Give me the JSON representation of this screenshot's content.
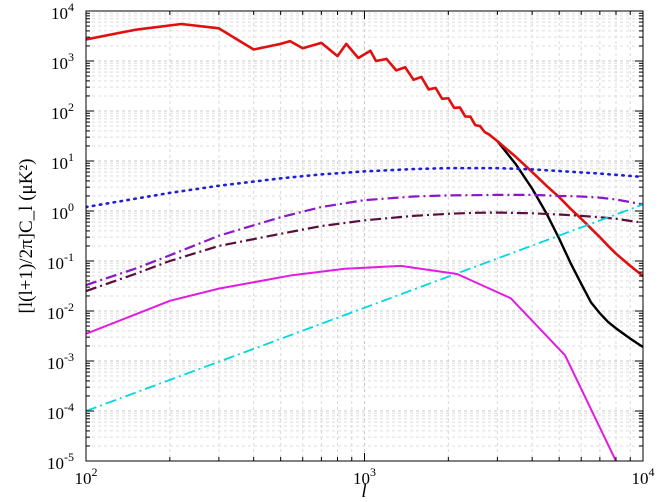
{
  "chart_data": {
    "type": "line",
    "xscale": "log",
    "yscale": "log",
    "xlim": [
      100,
      10000
    ],
    "ylim": [
      1e-05,
      10000
    ],
    "grid": true,
    "xlabel": "l",
    "ylabel": "[l(l+1)/2π]C_l (μK²)",
    "x_ticks": [
      {
        "value": 100,
        "base": "10",
        "exp": "2"
      },
      {
        "value": 1000,
        "base": "10",
        "exp": "3"
      },
      {
        "value": 10000,
        "base": "10",
        "exp": "4"
      }
    ],
    "y_ticks": [
      {
        "value": 1e-05,
        "base": "10",
        "exp": "-5"
      },
      {
        "value": 0.0001,
        "base": "10",
        "exp": "-4"
      },
      {
        "value": 0.001,
        "base": "10",
        "exp": "-3"
      },
      {
        "value": 0.01,
        "base": "10",
        "exp": "-2"
      },
      {
        "value": 0.1,
        "base": "10",
        "exp": "-1"
      },
      {
        "value": 1,
        "base": "10",
        "exp": "0"
      },
      {
        "value": 10,
        "base": "10",
        "exp": "1"
      },
      {
        "value": 100,
        "base": "10",
        "exp": "2"
      },
      {
        "value": 1000,
        "base": "10",
        "exp": "3"
      },
      {
        "value": 10000,
        "base": "10",
        "exp": "4"
      }
    ],
    "series": [
      {
        "color": "#000000",
        "style": "solid",
        "width": 2.4,
        "x": [
          3000,
          3500,
          4000,
          4500,
          5000,
          5500,
          6000,
          6500,
          7000,
          7500,
          8000,
          9000,
          10000
        ],
        "y": [
          25,
          8.5,
          2.8,
          0.9,
          0.28,
          0.09,
          0.035,
          0.015,
          0.009,
          0.006,
          0.0045,
          0.0028,
          0.0019
        ]
      },
      {
        "color": "#e01010",
        "style": "solid",
        "width": 2.6,
        "x": [
          100,
          150,
          220,
          300,
          400,
          500,
          540,
          600,
          700,
          800,
          860,
          950,
          1050,
          1100,
          1200,
          1300,
          1400,
          1500,
          1600,
          1700,
          1800,
          1900,
          2000,
          2100,
          2200,
          2300,
          2400,
          2500,
          2600,
          2700,
          2800,
          2900,
          3000,
          3500,
          4000,
          4500,
          5000,
          5500,
          6000,
          6500,
          7000,
          7500,
          8000,
          9000,
          10000
        ],
        "y": [
          2700,
          4200,
          5500,
          4500,
          1700,
          2200,
          2500,
          1800,
          2300,
          1250,
          2200,
          1150,
          1600,
          1000,
          1100,
          650,
          750,
          420,
          480,
          270,
          290,
          175,
          180,
          115,
          118,
          78,
          77,
          52,
          50,
          38,
          34,
          29,
          25,
          12,
          6,
          3.2,
          1.9,
          1.1,
          0.7,
          0.45,
          0.3,
          0.2,
          0.14,
          0.08,
          0.05
        ]
      },
      {
        "color": "#1f1fd6",
        "style": "dotted",
        "width": 2.6,
        "x": [
          100,
          200,
          300,
          500,
          700,
          1000,
          1500,
          2000,
          3000,
          4000,
          5000,
          7000,
          10000
        ],
        "y": [
          1.2,
          2.3,
          3.2,
          4.5,
          5.4,
          6.2,
          6.9,
          7.2,
          7.2,
          6.8,
          6.3,
          5.6,
          4.8
        ]
      },
      {
        "color": "#8a18c8",
        "style": "dashdot",
        "width": 2.2,
        "x": [
          100,
          150,
          200,
          300,
          500,
          700,
          1000,
          1500,
          2000,
          3000,
          4000,
          5000,
          6000,
          7000,
          8000,
          10000
        ],
        "y": [
          0.033,
          0.07,
          0.13,
          0.32,
          0.75,
          1.2,
          1.65,
          1.95,
          2.05,
          2.1,
          2.1,
          2.0,
          1.95,
          1.85,
          1.7,
          1.35
        ]
      },
      {
        "color": "#5a0e3c",
        "style": "dashdot",
        "width": 2.2,
        "x": [
          100,
          150,
          200,
          300,
          500,
          700,
          1000,
          1500,
          2000,
          2500,
          3000,
          4000,
          5000,
          6000,
          7000,
          8000,
          10000
        ],
        "y": [
          0.025,
          0.055,
          0.1,
          0.2,
          0.35,
          0.5,
          0.65,
          0.8,
          0.88,
          0.92,
          0.93,
          0.9,
          0.85,
          0.8,
          0.75,
          0.7,
          0.58
        ]
      },
      {
        "color": "#00d8e0",
        "style": "dashdot",
        "width": 1.8,
        "x": [
          100,
          10000
        ],
        "y": [
          0.0001,
          1.35
        ]
      },
      {
        "color": "#e21ce0",
        "style": "solid",
        "width": 2.0,
        "x": [
          100,
          150,
          200,
          300,
          550,
          850,
          1350,
          2150,
          3350,
          5250,
          8150
        ],
        "y": [
          0.0035,
          0.0085,
          0.016,
          0.028,
          0.052,
          0.07,
          0.08,
          0.055,
          0.018,
          0.0013,
          8e-06
        ]
      }
    ]
  }
}
